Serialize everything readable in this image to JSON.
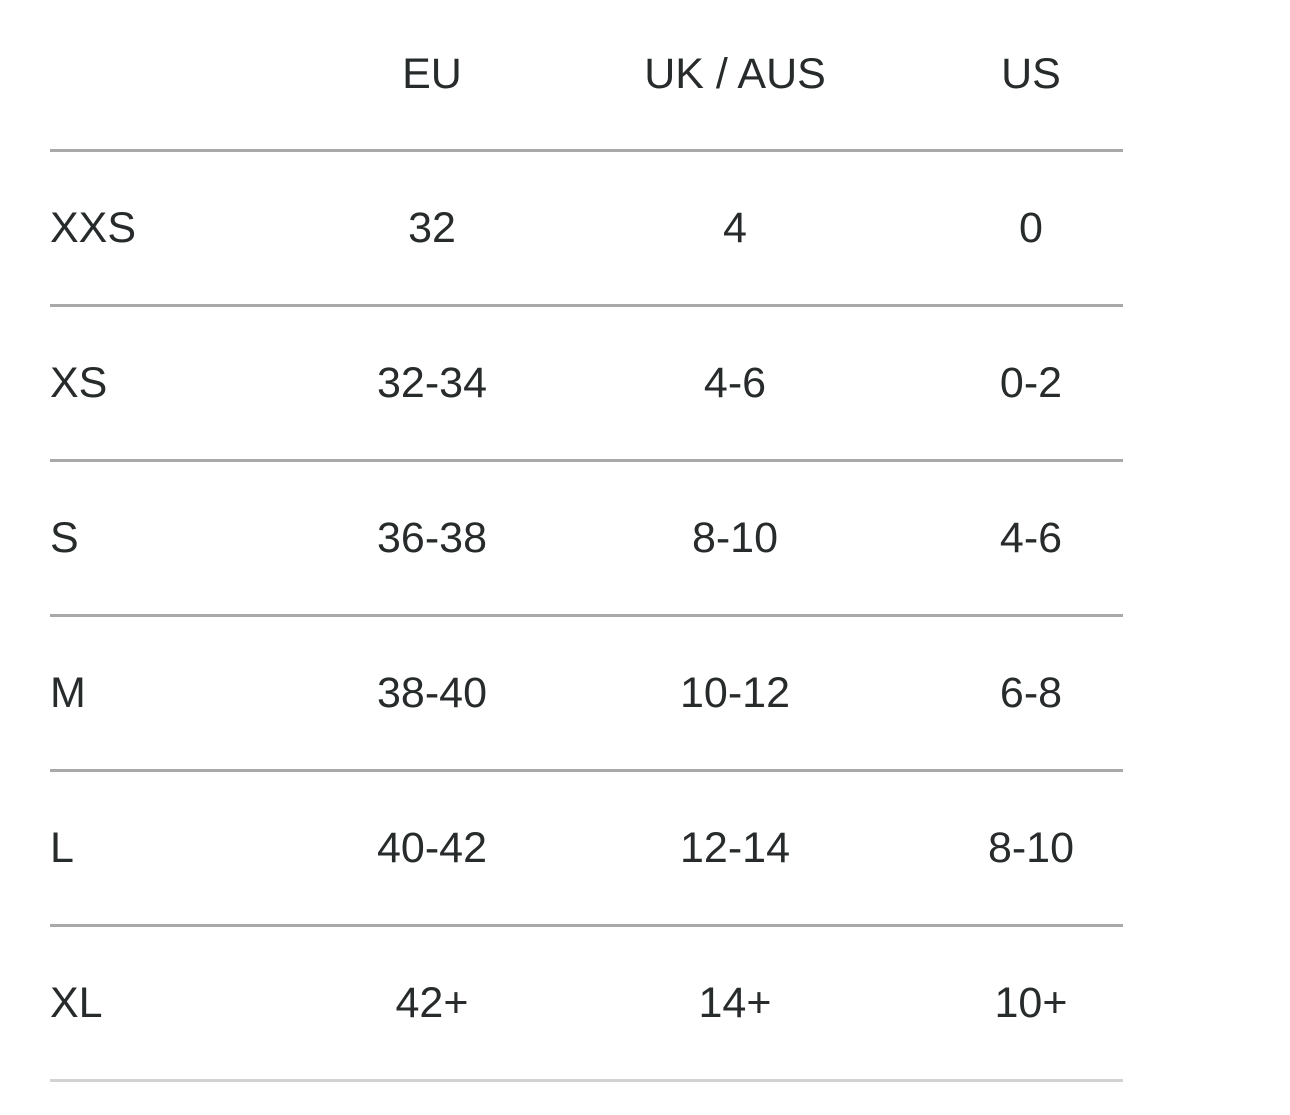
{
  "table": {
    "columns": [
      {
        "label": ""
      },
      {
        "label": "EU"
      },
      {
        "label": "UK / AUS"
      },
      {
        "label": "US"
      }
    ],
    "rows": [
      {
        "size": "XXS",
        "eu": "32",
        "uk_aus": "4",
        "us": "0"
      },
      {
        "size": "XS",
        "eu": "32-34",
        "uk_aus": "4-6",
        "us": "0-2"
      },
      {
        "size": "S",
        "eu": "36-38",
        "uk_aus": "8-10",
        "us": "4-6"
      },
      {
        "size": "M",
        "eu": "38-40",
        "uk_aus": "10-12",
        "us": "6-8"
      },
      {
        "size": "L",
        "eu": "40-42",
        "uk_aus": "12-14",
        "us": "8-10"
      },
      {
        "size": "XL",
        "eu": "42+",
        "uk_aus": "14+",
        "us": "10+"
      }
    ]
  },
  "colors": {
    "text": "#272b2c",
    "row_divider": "#a9a9a9",
    "bottom_divider": "#d2d2d2",
    "background": "#ffffff"
  }
}
